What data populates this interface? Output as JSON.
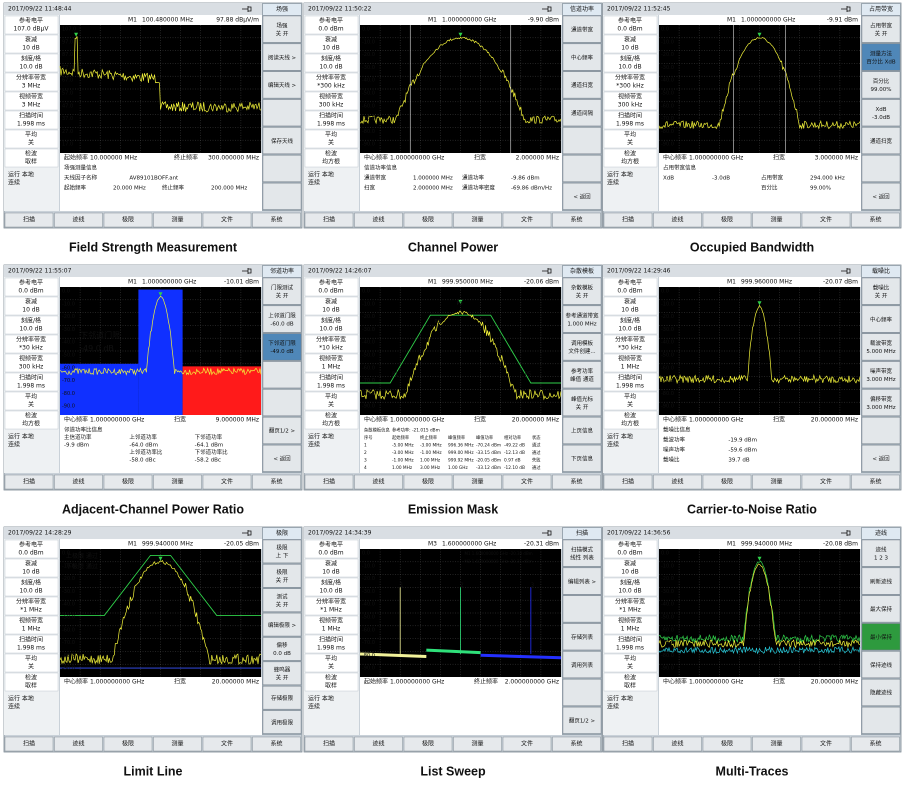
{
  "footer_keys": [
    "扫描",
    "迹线",
    "极限",
    "测量",
    "文件",
    "系统"
  ],
  "panels": [
    {
      "caption": "Field Strength Measurement",
      "menu": "场强",
      "time": "2017/09/22 11:48:44",
      "marker": "M1",
      "freq": "100.480000 MHz",
      "level": "97.88 dBμV/m",
      "params": [
        [
          "参考电平",
          "107.0 dBμV"
        ],
        [
          "衰减",
          "10 dB"
        ],
        [
          "刻度/格",
          "10.0 dB"
        ],
        [
          "分辨率带宽",
          "3 MHz"
        ],
        [
          "视频带宽",
          "3 MHz"
        ],
        [
          "扫描时间",
          "1.998 ms"
        ],
        [
          "平均",
          "关"
        ],
        [
          "检波",
          "取样"
        ]
      ],
      "status": [
        "运行 本地",
        "连续"
      ],
      "softkeys": [
        [
          "场强",
          "关 开"
        ],
        [
          "阅读天线 >"
        ],
        [
          "编辑天线 >"
        ],
        [],
        [
          "保存天线"
        ],
        [],
        []
      ],
      "yticks": [
        "107.0",
        "97.0",
        "87.0",
        "77.0",
        "67.0",
        "57.0",
        "47.0",
        "37.0",
        "27.0",
        "17.0"
      ],
      "axis": [
        [
          "起始频率",
          "10.000000 MHz"
        ],
        [
          "终止频率",
          "300.000000 MHz"
        ]
      ],
      "info": [
        [
          "场强测量信息"
        ],
        [
          "天线因子名称",
          "AV89101BOFF.ant"
        ],
        [
          "起始频率",
          "20.000 MHz",
          "终止频率",
          "200.000 MHz"
        ]
      ],
      "notes": []
    },
    {
      "caption": "Channel Power",
      "menu": "信道功率",
      "time": "2017/09/22 11:50:22",
      "marker": "M1",
      "freq": "1.000000000 GHz",
      "level": "-9.90 dBm",
      "params": [
        [
          "参考电平",
          "0.0 dBm"
        ],
        [
          "衰减",
          "10 dB"
        ],
        [
          "刻度/格",
          "10.0 dB"
        ],
        [
          "分辨率带宽",
          "*300 kHz"
        ],
        [
          "视频带宽",
          "300 kHz"
        ],
        [
          "扫描时间",
          "1.998 ms"
        ],
        [
          "平均",
          "关"
        ],
        [
          "检波",
          "均方根"
        ]
      ],
      "status": [
        "运行 本地",
        "连续"
      ],
      "softkeys": [
        [
          "通道带宽"
        ],
        [
          "中心频率"
        ],
        [
          "通道扫宽"
        ],
        [
          "通道间隔"
        ],
        [],
        [],
        [
          "< 返回"
        ]
      ],
      "yticks": [
        "0.0",
        "-10.0",
        "-20.0",
        "-30.0",
        "-40.0",
        "-50.0",
        "-60.0",
        "-70.0",
        "-80.0",
        "-90.0"
      ],
      "axis": [
        [
          "中心频率",
          "1.000000000 GHz"
        ],
        [
          "扫宽",
          "2.000000 MHz"
        ]
      ],
      "info": [
        [
          "信道功率信息"
        ],
        [
          "通道带宽",
          "1.000000 MHz",
          "通道功率",
          "-9.86 dBm"
        ],
        [
          "扫宽",
          "2.000000 MHz",
          "通道功率密度",
          "-69.86 dBm/Hz"
        ]
      ],
      "notes": []
    },
    {
      "caption": "Occupied Bandwidth",
      "menu": "占用带宽",
      "time": "2017/09/22 11:52:45",
      "marker": "M1",
      "freq": "1.000000000 GHz",
      "level": "-9.91 dBm",
      "params": [
        [
          "参考电平",
          "0.0 dBm"
        ],
        [
          "衰减",
          "10 dB"
        ],
        [
          "刻度/格",
          "10.0 dB"
        ],
        [
          "分辨率带宽",
          "*300 kHz"
        ],
        [
          "视频带宽",
          "300 kHz"
        ],
        [
          "扫描时间",
          "1.998 ms"
        ],
        [
          "平均",
          "关"
        ],
        [
          "检波",
          "均方根"
        ]
      ],
      "status": [
        "运行 本地",
        "连续"
      ],
      "softkeys": [
        [
          "占用带宽",
          "关 开"
        ],
        [
          "测量方法",
          "百分比 XdB"
        ],
        [
          "百分比",
          "99.00%"
        ],
        [
          "XdB",
          "-3.0dB"
        ],
        [
          "通道扫宽"
        ],
        [],
        [
          "< 返回"
        ]
      ],
      "active_key": 1,
      "active_color": "#4f87b8",
      "yticks": [
        "0.0",
        "-10.0",
        "-20.0",
        "-30.0",
        "-40.0",
        "-50.0",
        "-60.0",
        "-70.0",
        "-80.0",
        "-90.0"
      ],
      "axis": [
        [
          "中心频率",
          "1.000000000 GHz"
        ],
        [
          "扫宽",
          "3.000000 MHz"
        ]
      ],
      "info": [
        [
          "占用带宽信息"
        ],
        [
          "XdB",
          "-3.0dB",
          "占用带宽",
          "294.000 kHz"
        ],
        [
          "",
          "",
          "百分比",
          "99.00%"
        ]
      ],
      "notes": []
    },
    {
      "caption": "Adjacent-Channel Power Ratio",
      "menu": "邻道功率",
      "time": "2017/09/22 11:55:07",
      "marker": "M1",
      "freq": "1.000000000 GHz",
      "level": "-10.01 dBm",
      "params": [
        [
          "参考电平",
          "0.0 dBm"
        ],
        [
          "衰减",
          "10 dB"
        ],
        [
          "刻度/格",
          "10.0 dB"
        ],
        [
          "分辨率带宽",
          "*30 kHz"
        ],
        [
          "视频带宽",
          "300 kHz"
        ],
        [
          "扫描时间",
          "1.998 ms"
        ],
        [
          "平均",
          "关"
        ],
        [
          "检波",
          "均方根"
        ]
      ],
      "status": [
        "运行 本地",
        "连续"
      ],
      "softkeys": [
        [
          "门限测试",
          "关 开"
        ],
        [
          "上邻道门限",
          "-60.0 dB"
        ],
        [
          "下邻道门限",
          "-49.0 dB"
        ],
        [],
        [],
        [
          "翻页1/2 >"
        ],
        [
          "< 返回"
        ]
      ],
      "active_key": 2,
      "active_color": "#4f87b8",
      "yticks": [
        "0.0",
        "-10.0",
        "-20.0",
        "-30.0",
        "-40.0",
        "-50.0",
        "-60.0",
        "-70.0",
        "-80.0",
        "-90.0"
      ],
      "axis": [
        [
          "中心频率",
          "1.000000000 GHz"
        ],
        [
          "扫宽",
          "9.000000 MHz"
        ]
      ],
      "info": [
        [
          "邻道功率比信息"
        ],
        [
          "主信道功率",
          "上邻道功率",
          "下邻道功率"
        ],
        [
          "-9.9 dBm",
          "-64.0 dBm",
          "-64.1 dBm"
        ],
        [
          "",
          "上邻道功率比",
          "下邻道功率比"
        ],
        [
          "",
          "-58.0 dBc",
          "-58.2 dBc"
        ]
      ],
      "notes": [
        "下邻道门限",
        "-49.0 dB"
      ]
    },
    {
      "caption": "Emission Mask",
      "menu": "杂散模板",
      "time": "2017/09/22 14:26:07",
      "marker": "M1",
      "freq": "999.950000 MHz",
      "level": "-20.06 dBm",
      "params": [
        [
          "参考电平",
          "0.0 dBm"
        ],
        [
          "衰减",
          "10 dB"
        ],
        [
          "刻度/格",
          "10.0 dB"
        ],
        [
          "分辨率带宽",
          "*10 kHz"
        ],
        [
          "视频带宽",
          "1 MHz"
        ],
        [
          "扫描时间",
          "1.998 ms"
        ],
        [
          "平均",
          "关"
        ],
        [
          "检波",
          "均方根"
        ]
      ],
      "status": [
        "运行 本地",
        "连续"
      ],
      "softkeys": [
        [
          "杂散模板",
          "关 开"
        ],
        [
          "参考通道带宽",
          "1.000 MHz"
        ],
        [
          "调用模板",
          "文件创建..."
        ],
        [
          "参考功率",
          "峰值 通道"
        ],
        [
          "峰值光标",
          "关 开"
        ],
        [
          "上页信息"
        ],
        [
          "下页信息"
        ]
      ],
      "yticks": [
        "0.0",
        "-10.0",
        "-20.0",
        "-30.0",
        "-40.0",
        "-50.0",
        "-60.0",
        "-70.0",
        "-80.0",
        "-90.0"
      ],
      "axis": [
        [
          "中心频率",
          "1.000000000 GHz"
        ],
        [
          "扫宽",
          "20.000000 MHz"
        ]
      ],
      "info": [
        [
          "杂散模板信息",
          "参考功率: -21.015 dBm"
        ],
        [
          "序号",
          "起始频率",
          "终止频率",
          "峰值频率",
          "峰值功率",
          "相对功率",
          "状态"
        ],
        [
          "1",
          "-5.00 MHz",
          "-3.00 MHz",
          "996.36 MHz",
          "-70.24 dBm",
          "-49.22 dB",
          "通过"
        ],
        [
          "2",
          "-3.00 MHz",
          "-1.00 MHz",
          "999.00 MHz",
          "-33.15 dBm",
          "-12.13 dB",
          "通过"
        ],
        [
          "3",
          "-1.00 MHz",
          "1.00 MHz",
          "999.92 MHz",
          "-20.05 dBm",
          "0.97 dB",
          "失败"
        ],
        [
          "4",
          "1.00 MHz",
          "3.00 MHz",
          "1.00 GHz",
          "-33.12 dBm",
          "-12.10 dB",
          "通过"
        ]
      ],
      "notes": [
        "P1",
        "P2",
        "P3",
        "P4",
        "P5"
      ]
    },
    {
      "caption": "Carrier-to-Noise Ratio",
      "menu": "载噪比",
      "time": "2017/09/22 14:29:46",
      "marker": "M1",
      "freq": "999.960000 MHz",
      "level": "-20.07 dBm",
      "params": [
        [
          "参考电平",
          "0.0 dBm"
        ],
        [
          "衰减",
          "10 dB"
        ],
        [
          "刻度/格",
          "10.0 dB"
        ],
        [
          "分辨率带宽",
          "*30 kHz"
        ],
        [
          "视频带宽",
          "1 MHz"
        ],
        [
          "扫描时间",
          "1.998 ms"
        ],
        [
          "平均",
          "关"
        ],
        [
          "检波",
          "均方根"
        ]
      ],
      "status": [
        "运行 本地",
        "连续"
      ],
      "softkeys": [
        [
          "载噪比",
          "关 开"
        ],
        [
          "中心频率"
        ],
        [
          "载波带宽",
          "5.000 MHz"
        ],
        [
          "噪声带宽",
          "3.000 MHz"
        ],
        [
          "偏移带宽",
          "3.000 MHz"
        ],
        [],
        [
          "< 返回"
        ]
      ],
      "yticks": [
        "0.0",
        "-10.0",
        "-20.0",
        "-30.0",
        "-40.0",
        "-50.0",
        "-60.0",
        "-70.0",
        "-80.0",
        "-90.0"
      ],
      "axis": [
        [
          "中心频率",
          "1.000000000 GHz"
        ],
        [
          "扫宽",
          "20.000000 MHz"
        ]
      ],
      "info": [
        [
          "载噪比信息"
        ],
        [
          "载波功率",
          "-19.9 dBm"
        ],
        [
          "噪声功率",
          "-59.6 dBm"
        ],
        [
          "载噪比",
          "39.7 dB"
        ]
      ],
      "notes": []
    },
    {
      "caption": "Limit Line",
      "menu": "极限",
      "time": "2017/09/22 14:28:29",
      "marker": "M1",
      "freq": "999.940000 MHz",
      "level": "-20.05 dBm",
      "params": [
        [
          "参考电平",
          "0.0 dBm"
        ],
        [
          "衰减",
          "10 dB"
        ],
        [
          "刻度/格",
          "10.0 dB"
        ],
        [
          "分辨率带宽",
          "*1 MHz"
        ],
        [
          "视频带宽",
          "1 MHz"
        ],
        [
          "扫描时间",
          "1.998 ms"
        ],
        [
          "平均",
          "关"
        ],
        [
          "检波",
          "取样"
        ]
      ],
      "status": [
        "运行 本地",
        "连续"
      ],
      "softkeys": [
        [
          "极限",
          "上 下"
        ],
        [
          "极限",
          "关 开"
        ],
        [
          "测试",
          "关 开"
        ],
        [
          "编辑极限 >"
        ],
        [
          "偏移",
          "0.0 dB"
        ],
        [
          "蜂鸣器",
          "关 开"
        ],
        [
          "存储极限"
        ],
        [
          "调用极限"
        ]
      ],
      "yticks": [
        "0.0",
        "-10.0",
        "-20.0",
        "-30.0",
        "-40.0",
        "-50.0",
        "-60.0",
        "-70.0",
        "-80.0",
        "-90.0"
      ],
      "axis": [
        [
          "中心频率",
          "1.000000000 GHz"
        ],
        [
          "扫宽",
          "20.000000 MHz"
        ]
      ],
      "info": [],
      "notes": [
        "上极限 通过",
        "下极限 通过"
      ]
    },
    {
      "caption": "List Sweep",
      "menu": "扫描",
      "time": "2017/09/22 14:34:39",
      "marker": "M3",
      "freq": "1.600000000 GHz",
      "level": "-20.31 dBm",
      "params": [
        [
          "参考电平",
          "0.0 dBm"
        ],
        [
          "衰减",
          "10 dB"
        ],
        [
          "刻度/格",
          "10.0 dB"
        ],
        [
          "分辨率带宽",
          "*1 MHz"
        ],
        [
          "视频带宽",
          "1 MHz"
        ],
        [
          "扫描时间",
          "1.998 ms"
        ],
        [
          "平均",
          "关"
        ],
        [
          "检波",
          "取样"
        ]
      ],
      "status": [
        "运行 本地",
        "连续"
      ],
      "softkeys": [
        [
          "扫描模式",
          "线性 列表"
        ],
        [
          "编辑列表 >"
        ],
        [],
        [
          "存储列表"
        ],
        [
          "调用列表"
        ],
        [],
        [
          "翻页1/2 >"
        ]
      ],
      "yticks": [
        "0.0",
        "-10.0",
        "-20.0",
        "-30.0",
        "-40.0",
        "-50.0",
        "-60.0",
        "-70.0",
        "-80.0",
        "-90.0"
      ],
      "axis": [
        [
          "起始频率",
          "1.000000000 GHz"
        ],
        [
          "终止频率",
          "2.000000000 GHz"
        ]
      ],
      "info": [],
      "notes": [
        "1",
        "2",
        "3",
        "M1  1.600000000 GHz  -20.33 dBm",
        "M2  1.600000000 GHz  -20.31 dBm"
      ]
    },
    {
      "caption": "Multi-Traces",
      "menu": "迹线",
      "time": "2017/09/22 14:36:56",
      "marker": "M1",
      "freq": "999.940000 MHz",
      "level": "-20.08 dBm",
      "params": [
        [
          "参考电平",
          "0.0 dBm"
        ],
        [
          "衰减",
          "10 dB"
        ],
        [
          "刻度/格",
          "10.0 dB"
        ],
        [
          "分辨率带宽",
          "*1 MHz"
        ],
        [
          "视频带宽",
          "1 MHz"
        ],
        [
          "扫描时间",
          "1.998 ms"
        ],
        [
          "平均",
          "关"
        ],
        [
          "检波",
          "取样"
        ]
      ],
      "status": [
        "运行 本地",
        "连续"
      ],
      "softkeys": [
        [
          "迹线",
          "1 2 3"
        ],
        [
          "刷新迹线"
        ],
        [
          "最大保持"
        ],
        [
          "最小保持"
        ],
        [
          "保持迹线"
        ],
        [
          "隐藏迹线"
        ],
        []
      ],
      "active_key": 3,
      "active_color": "#2e9a3e",
      "yticks": [
        "0.0",
        "-10.0",
        "-20.0",
        "-30.0",
        "-40.0",
        "-50.0",
        "-60.0",
        "-70.0",
        "-80.0",
        "-90.0"
      ],
      "axis": [
        [
          "中心频率",
          "1.000000000 GHz"
        ],
        [
          "扫宽",
          "20.000000 MHz"
        ]
      ],
      "info": [],
      "notes": []
    }
  ]
}
